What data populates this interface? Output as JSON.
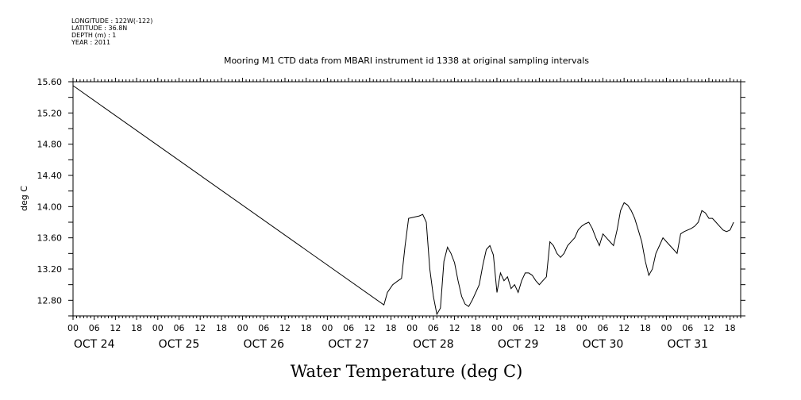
{
  "metadata": [
    "LONGITUDE : 122W(-122)",
    "LATITUDE : 36.8N",
    "DEPTH (m) : 1",
    "YEAR : 2011"
  ],
  "chart_data": {
    "type": "line",
    "title": "Mooring M1 CTD data from MBARI instrument id 1338 at original sampling intervals",
    "xlabel": "Water Temperature (deg C)",
    "ylabel": "deg C",
    "ylim": [
      12.6,
      15.6
    ],
    "yticks": [
      "12.80",
      "13.20",
      "13.60",
      "14.00",
      "14.40",
      "14.80",
      "15.20",
      "15.60"
    ],
    "xlim": [
      "2011-10-24T00:00",
      "2011-10-31T21:00"
    ],
    "hour_labels": [
      "00",
      "06",
      "12",
      "18"
    ],
    "day_labels": [
      "OCT 24",
      "OCT 25",
      "OCT 26",
      "OCT 27",
      "OCT 28",
      "OCT 29",
      "OCT 30",
      "OCT 31"
    ],
    "grid": false,
    "series": [
      {
        "x": [
          "2011-10-24T00:00",
          "2011-10-27T16:00",
          "2011-10-27T17:00",
          "2011-10-27T18:30",
          "2011-10-27T20:00",
          "2011-10-27T21:00",
          "2011-10-27T22:00",
          "2011-10-27T23:00",
          "2011-10-28T00:00",
          "2011-10-28T01:00",
          "2011-10-28T02:00",
          "2011-10-28T03:00",
          "2011-10-28T04:00",
          "2011-10-28T05:00",
          "2011-10-28T06:00",
          "2011-10-28T07:00",
          "2011-10-28T08:00",
          "2011-10-28T09:00",
          "2011-10-28T10:00",
          "2011-10-28T11:00",
          "2011-10-28T12:00",
          "2011-10-28T13:00",
          "2011-10-28T14:00",
          "2011-10-28T15:00",
          "2011-10-28T16:00",
          "2011-10-28T17:00",
          "2011-10-28T18:00",
          "2011-10-28T19:00",
          "2011-10-28T20:00",
          "2011-10-28T21:00",
          "2011-10-28T22:00",
          "2011-10-28T23:00",
          "2011-10-29T00:00",
          "2011-10-29T01:00",
          "2011-10-29T02:00",
          "2011-10-29T03:00",
          "2011-10-29T04:00",
          "2011-10-29T05:00",
          "2011-10-29T06:00",
          "2011-10-29T07:00",
          "2011-10-29T08:00",
          "2011-10-29T09:00",
          "2011-10-29T10:00",
          "2011-10-29T11:00",
          "2011-10-29T12:00",
          "2011-10-29T13:00",
          "2011-10-29T14:00",
          "2011-10-29T15:00",
          "2011-10-29T16:00",
          "2011-10-29T17:00",
          "2011-10-29T18:00",
          "2011-10-29T19:00",
          "2011-10-29T20:00",
          "2011-10-29T21:00",
          "2011-10-29T22:00",
          "2011-10-29T23:00",
          "2011-10-30T00:00",
          "2011-10-30T01:00",
          "2011-10-30T02:00",
          "2011-10-30T03:00",
          "2011-10-30T04:00",
          "2011-10-30T05:00",
          "2011-10-30T06:00",
          "2011-10-30T07:00",
          "2011-10-30T08:00",
          "2011-10-30T09:00",
          "2011-10-30T10:00",
          "2011-10-30T11:00",
          "2011-10-30T12:00",
          "2011-10-30T13:00",
          "2011-10-30T14:00",
          "2011-10-30T15:00",
          "2011-10-30T16:00",
          "2011-10-30T17:00",
          "2011-10-30T18:00",
          "2011-10-30T19:00",
          "2011-10-30T20:00",
          "2011-10-30T21:00",
          "2011-10-30T22:00",
          "2011-10-30T23:00",
          "2011-10-31T00:00",
          "2011-10-31T01:00",
          "2011-10-31T02:00",
          "2011-10-31T03:00",
          "2011-10-31T04:00",
          "2011-10-31T05:00",
          "2011-10-31T06:00",
          "2011-10-31T07:00",
          "2011-10-31T08:00",
          "2011-10-31T09:00",
          "2011-10-31T10:00",
          "2011-10-31T11:00",
          "2011-10-31T12:00",
          "2011-10-31T13:00",
          "2011-10-31T14:00",
          "2011-10-31T15:00",
          "2011-10-31T16:00",
          "2011-10-31T17:00",
          "2011-10-31T18:00",
          "2011-10-31T19:00"
        ],
        "values": [
          15.55,
          12.74,
          12.9,
          13.0,
          13.05,
          13.08,
          13.5,
          13.85,
          13.86,
          13.87,
          13.88,
          13.9,
          13.8,
          13.2,
          12.85,
          12.62,
          12.7,
          13.3,
          13.48,
          13.4,
          13.28,
          13.05,
          12.85,
          12.75,
          12.72,
          12.8,
          12.9,
          13.0,
          13.25,
          13.45,
          13.5,
          13.38,
          12.9,
          13.15,
          13.05,
          13.1,
          12.95,
          13.0,
          12.9,
          13.05,
          13.15,
          13.15,
          13.12,
          13.05,
          13.0,
          13.05,
          13.1,
          13.55,
          13.5,
          13.4,
          13.35,
          13.4,
          13.5,
          13.55,
          13.6,
          13.7,
          13.75,
          13.78,
          13.8,
          13.72,
          13.6,
          13.5,
          13.65,
          13.6,
          13.55,
          13.5,
          13.7,
          13.95,
          14.05,
          14.02,
          13.95,
          13.85,
          13.7,
          13.55,
          13.3,
          13.12,
          13.2,
          13.4,
          13.5,
          13.6,
          13.55,
          13.5,
          13.45,
          13.4,
          13.65,
          13.68,
          13.7,
          13.72,
          13.75,
          13.8,
          13.95,
          13.92,
          13.85,
          13.85,
          13.8,
          13.75,
          13.7,
          13.68,
          13.7,
          13.8
        ]
      }
    ]
  }
}
